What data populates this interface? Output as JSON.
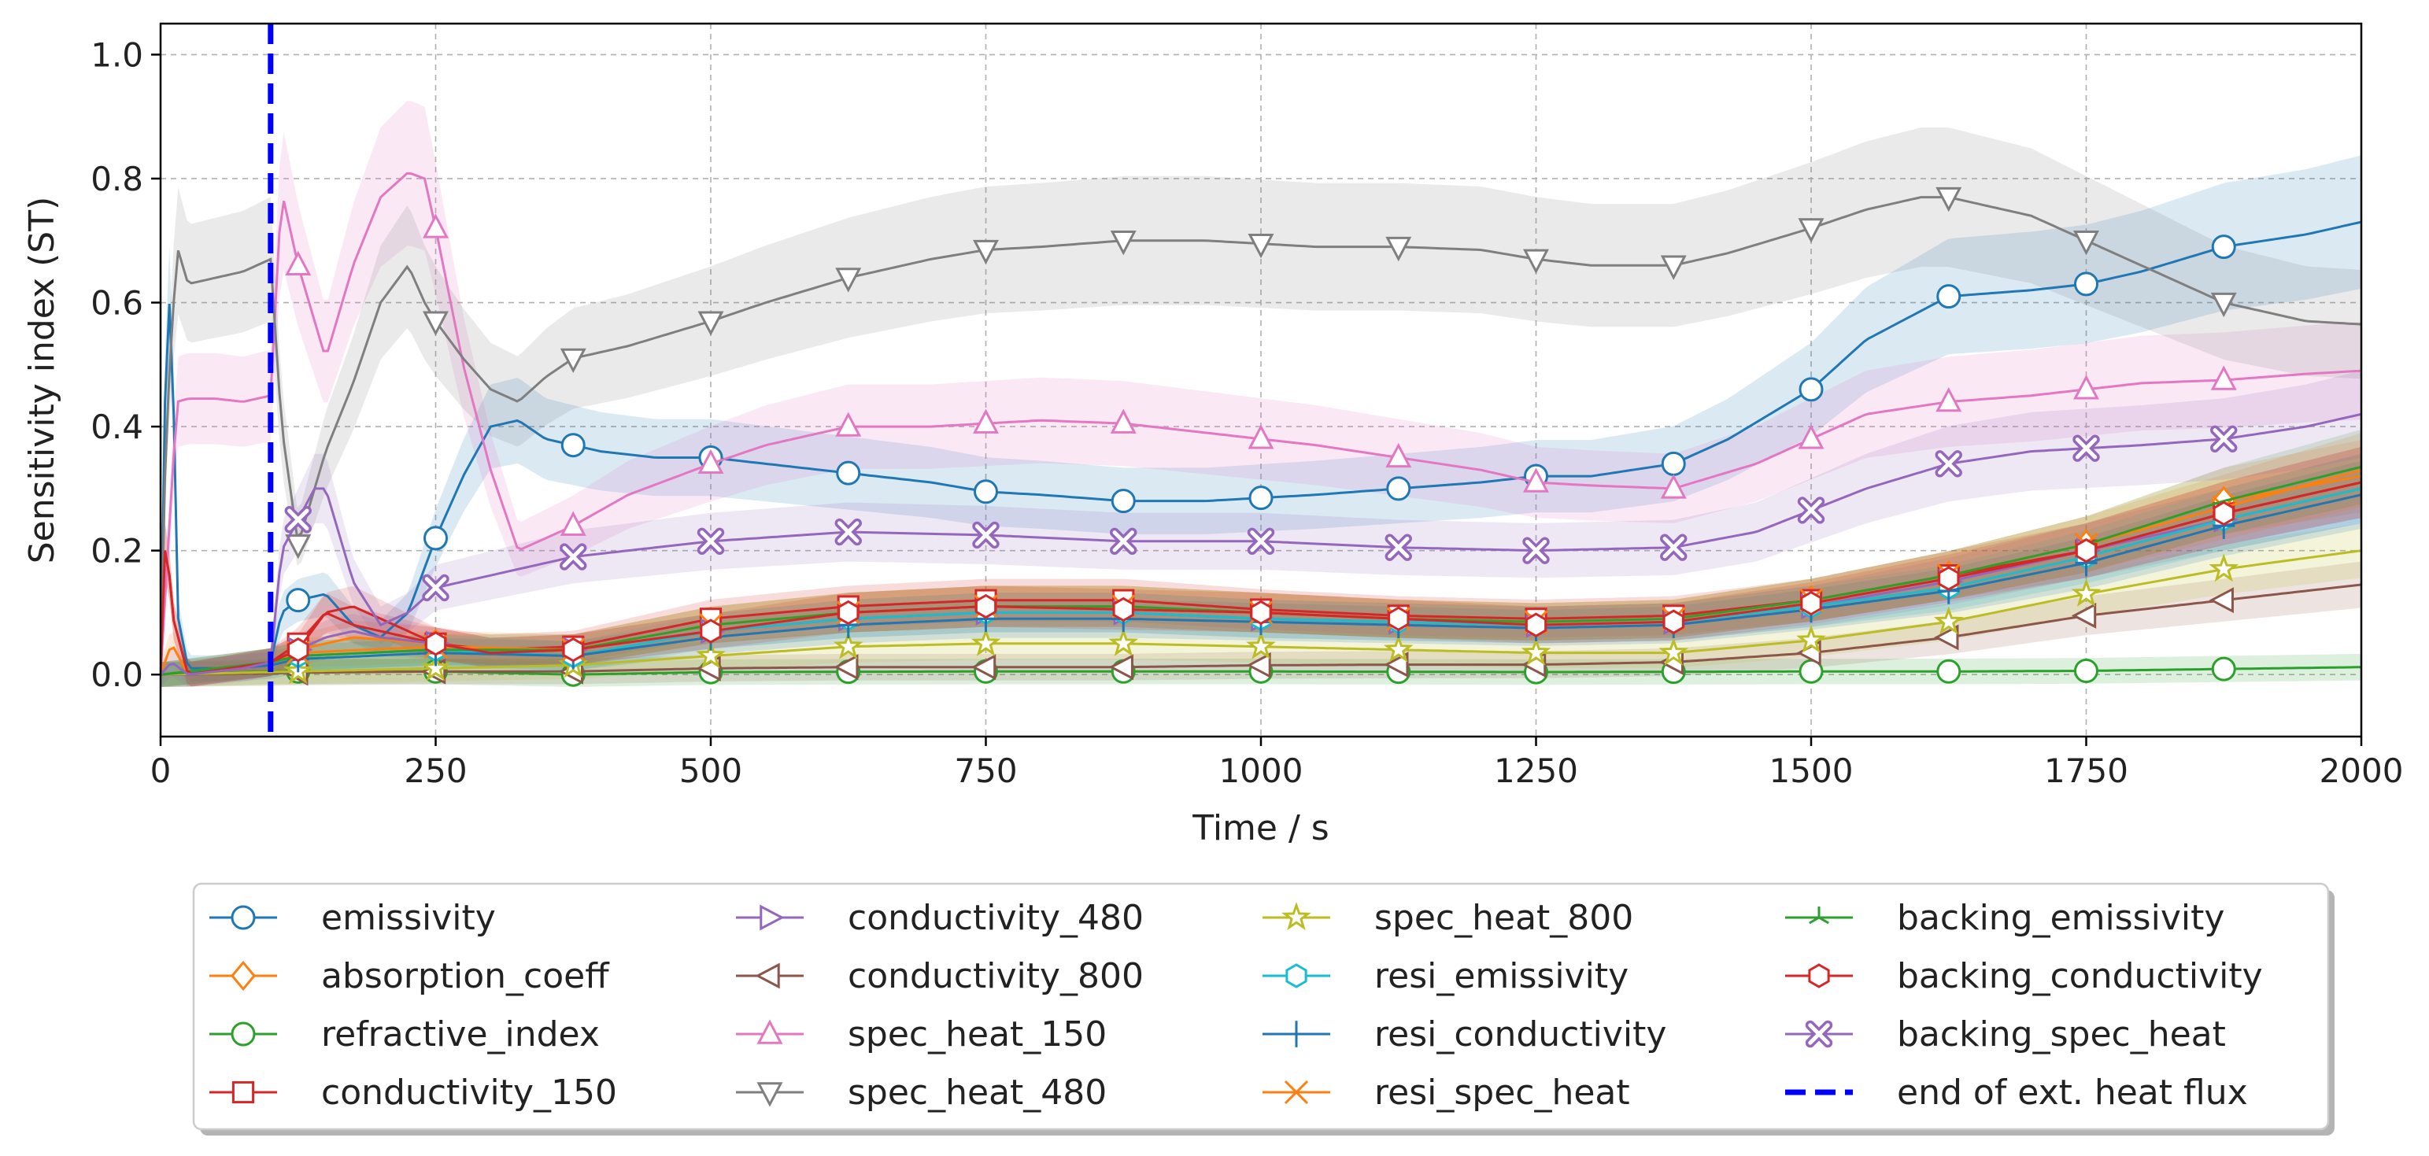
{
  "chart_data": {
    "type": "line",
    "title": "",
    "xlabel": "Time / s",
    "ylabel": "Sensitivity index (ST)",
    "xlim": [
      0,
      2000
    ],
    "ylim": [
      -0.1,
      1.05
    ],
    "xticks": [
      0,
      250,
      500,
      750,
      1000,
      1250,
      1500,
      1750,
      2000
    ],
    "yticks": [
      0.0,
      0.2,
      0.4,
      0.6,
      0.8,
      1.0
    ],
    "grid": true,
    "legend_position": "bottom, outside plot, 4 columns",
    "vline": {
      "x": 100,
      "label": "end of ext. heat flux",
      "color": "#0000ff"
    },
    "series": [
      {
        "name": "emissivity",
        "color": "#1f77b4",
        "marker": "circle",
        "x": [
          0,
          5,
          10,
          15,
          25,
          50,
          75,
          100,
          110,
          125,
          150,
          175,
          200,
          225,
          250,
          275,
          300,
          325,
          350,
          375,
          400,
          450,
          500,
          550,
          600,
          625,
          700,
          750,
          800,
          875,
          950,
          1000,
          1050,
          1125,
          1200,
          1250,
          1300,
          1375,
          1425,
          1500,
          1550,
          1625,
          1700,
          1750,
          1800,
          1875,
          1950,
          2000
        ],
        "y": [
          0.0,
          0.55,
          0.63,
          0.1,
          0.01,
          0.01,
          0.015,
          0.02,
          0.1,
          0.12,
          0.13,
          0.08,
          0.06,
          0.1,
          0.22,
          0.32,
          0.4,
          0.41,
          0.38,
          0.37,
          0.36,
          0.35,
          0.35,
          0.34,
          0.33,
          0.325,
          0.31,
          0.295,
          0.29,
          0.28,
          0.28,
          0.285,
          0.29,
          0.3,
          0.31,
          0.32,
          0.32,
          0.34,
          0.38,
          0.46,
          0.54,
          0.61,
          0.62,
          0.63,
          0.65,
          0.69,
          0.71,
          0.73
        ],
        "markers_at": [
          125,
          250,
          375,
          500,
          625,
          750,
          875,
          1000,
          1125,
          1250,
          1375,
          1500,
          1625,
          1750,
          1875
        ]
      },
      {
        "name": "absorption_coeff",
        "color": "#ff7f0e",
        "marker": "diamond",
        "x": [
          0,
          10,
          25,
          100,
          125,
          175,
          250,
          300,
          375,
          500,
          625,
          750,
          875,
          1000,
          1125,
          1250,
          1375,
          1500,
          1625,
          1750,
          1875,
          2000
        ],
        "y": [
          0.0,
          0.05,
          0.0,
          0.02,
          0.04,
          0.06,
          0.05,
          0.035,
          0.04,
          0.08,
          0.1,
          0.11,
          0.11,
          0.1,
          0.09,
          0.085,
          0.09,
          0.12,
          0.16,
          0.21,
          0.28,
          0.32
        ],
        "markers_at": [
          125,
          250,
          375,
          500,
          625,
          750,
          875,
          1000,
          1125,
          1250,
          1375,
          1500,
          1625,
          1750,
          1875
        ]
      },
      {
        "name": "refractive_index",
        "color": "#2ca02c",
        "marker": "circle",
        "x": [
          0,
          100,
          125,
          250,
          375,
          500,
          750,
          1000,
          1250,
          1500,
          1625,
          1750,
          1875,
          2000
        ],
        "y": [
          0.0,
          0.005,
          0.005,
          0.005,
          0.0,
          0.004,
          0.005,
          0.005,
          0.004,
          0.005,
          0.005,
          0.006,
          0.009,
          0.012
        ],
        "markers_at": [
          125,
          250,
          375,
          500,
          625,
          750,
          875,
          1000,
          1125,
          1250,
          1375,
          1500,
          1625,
          1750,
          1875
        ]
      },
      {
        "name": "conductivity_150",
        "color": "#d62728",
        "marker": "square",
        "x": [
          0,
          5,
          10,
          25,
          100,
          125,
          150,
          175,
          200,
          250,
          300,
          375,
          500,
          625,
          750,
          875,
          1000,
          1125,
          1250,
          1375,
          1500,
          1625,
          1750,
          1875,
          2000
        ],
        "y": [
          0.0,
          0.25,
          0.1,
          0.0,
          0.02,
          0.05,
          0.1,
          0.08,
          0.07,
          0.05,
          0.04,
          0.045,
          0.09,
          0.11,
          0.12,
          0.12,
          0.105,
          0.095,
          0.09,
          0.095,
          0.12,
          0.16,
          0.2,
          0.26,
          0.31
        ],
        "markers_at": [
          125,
          250,
          375,
          500,
          625,
          750,
          875,
          1000,
          1125,
          1250,
          1375,
          1500,
          1625,
          1750,
          1875
        ]
      },
      {
        "name": "conductivity_480",
        "color": "#9467bd",
        "marker": "triangle-right",
        "x": [
          0,
          25,
          100,
          125,
          150,
          175,
          200,
          250,
          300,
          375,
          500,
          625,
          750,
          875,
          1000,
          1125,
          1250,
          1375,
          1500,
          1625,
          1750,
          1875,
          2000
        ],
        "y": [
          0.0,
          0.0,
          0.02,
          0.04,
          0.06,
          0.07,
          0.06,
          0.05,
          0.035,
          0.04,
          0.07,
          0.09,
          0.1,
          0.1,
          0.09,
          0.085,
          0.08,
          0.085,
          0.11,
          0.15,
          0.2,
          0.25,
          0.3
        ],
        "markers_at": [
          125,
          250,
          375,
          500,
          625,
          750,
          875,
          1000,
          1125,
          1250,
          1375,
          1500,
          1625,
          1750,
          1875
        ]
      },
      {
        "name": "conductivity_800",
        "color": "#8c564b",
        "marker": "triangle-left",
        "x": [
          0,
          100,
          125,
          250,
          375,
          500,
          625,
          750,
          875,
          1000,
          1125,
          1250,
          1375,
          1500,
          1625,
          1750,
          1875,
          2000
        ],
        "y": [
          0.0,
          0.002,
          0.003,
          0.005,
          0.005,
          0.01,
          0.012,
          0.012,
          0.012,
          0.015,
          0.016,
          0.016,
          0.02,
          0.035,
          0.06,
          0.095,
          0.12,
          0.145
        ],
        "markers_at": [
          125,
          250,
          375,
          500,
          625,
          750,
          875,
          1000,
          1125,
          1250,
          1375,
          1500,
          1625,
          1750,
          1875
        ]
      },
      {
        "name": "spec_heat_150",
        "color": "#e377c2",
        "marker": "triangle-up",
        "x": [
          0,
          10,
          15,
          25,
          50,
          75,
          100,
          110,
          125,
          150,
          175,
          200,
          225,
          240,
          250,
          275,
          300,
          325,
          350,
          375,
          425,
          500,
          550,
          625,
          700,
          750,
          800,
          875,
          950,
          1000,
          1050,
          1125,
          1200,
          1250,
          1300,
          1375,
          1450,
          1500,
          1550,
          1625,
          1700,
          1750,
          1800,
          1875,
          1950,
          2000
        ],
        "y": [
          0.0,
          0.3,
          0.44,
          0.445,
          0.445,
          0.44,
          0.45,
          0.78,
          0.66,
          0.51,
          0.66,
          0.77,
          0.81,
          0.8,
          0.72,
          0.5,
          0.33,
          0.2,
          0.22,
          0.24,
          0.29,
          0.34,
          0.37,
          0.4,
          0.4,
          0.405,
          0.41,
          0.405,
          0.39,
          0.38,
          0.37,
          0.35,
          0.33,
          0.31,
          0.305,
          0.3,
          0.34,
          0.38,
          0.42,
          0.44,
          0.45,
          0.46,
          0.47,
          0.475,
          0.485,
          0.49
        ],
        "markers_at": [
          125,
          250,
          375,
          500,
          625,
          750,
          875,
          1000,
          1125,
          1250,
          1375,
          1500,
          1625,
          1750,
          1875
        ]
      },
      {
        "name": "spec_heat_480",
        "color": "#7f7f7f",
        "marker": "triangle-down",
        "x": [
          0,
          5,
          15,
          25,
          50,
          75,
          100,
          110,
          125,
          150,
          175,
          200,
          225,
          240,
          250,
          275,
          300,
          325,
          350,
          375,
          425,
          500,
          550,
          625,
          700,
          750,
          800,
          875,
          950,
          1000,
          1050,
          1125,
          1200,
          1250,
          1300,
          1375,
          1425,
          1500,
          1550,
          1600,
          1625,
          1700,
          1750,
          1800,
          1875,
          1950,
          2000
        ],
        "y": [
          0.0,
          0.4,
          0.69,
          0.63,
          0.64,
          0.65,
          0.67,
          0.4,
          0.21,
          0.36,
          0.47,
          0.6,
          0.66,
          0.6,
          0.57,
          0.51,
          0.46,
          0.44,
          0.48,
          0.51,
          0.53,
          0.57,
          0.6,
          0.64,
          0.67,
          0.685,
          0.69,
          0.7,
          0.7,
          0.695,
          0.69,
          0.69,
          0.685,
          0.67,
          0.66,
          0.66,
          0.68,
          0.72,
          0.75,
          0.77,
          0.77,
          0.74,
          0.7,
          0.66,
          0.6,
          0.57,
          0.565
        ],
        "markers_at": [
          125,
          250,
          375,
          500,
          625,
          750,
          875,
          1000,
          1125,
          1250,
          1375,
          1500,
          1625,
          1750,
          1875
        ]
      },
      {
        "name": "spec_heat_800",
        "color": "#bcbd22",
        "marker": "star",
        "x": [
          0,
          100,
          125,
          250,
          375,
          500,
          625,
          750,
          875,
          1000,
          1125,
          1250,
          1375,
          1500,
          1625,
          1750,
          1875,
          2000
        ],
        "y": [
          0.0,
          0.004,
          0.005,
          0.01,
          0.015,
          0.03,
          0.045,
          0.05,
          0.05,
          0.045,
          0.04,
          0.035,
          0.035,
          0.055,
          0.085,
          0.13,
          0.17,
          0.2
        ],
        "markers_at": [
          125,
          250,
          375,
          500,
          625,
          750,
          875,
          1000,
          1125,
          1250,
          1375,
          1500,
          1625,
          1750,
          1875
        ]
      },
      {
        "name": "resi_emissivity",
        "color": "#17becf",
        "marker": "hexagon",
        "x": [
          0,
          100,
          125,
          250,
          375,
          500,
          625,
          750,
          875,
          1000,
          1125,
          1250,
          1375,
          1500,
          1625,
          1750,
          1875,
          2000
        ],
        "y": [
          0.0,
          0.02,
          0.03,
          0.04,
          0.03,
          0.07,
          0.09,
          0.1,
          0.1,
          0.09,
          0.085,
          0.08,
          0.085,
          0.11,
          0.14,
          0.19,
          0.25,
          0.3
        ],
        "markers_at": [
          125,
          250,
          375,
          500,
          625,
          750,
          875,
          1000,
          1125,
          1250,
          1375,
          1500,
          1625,
          1750,
          1875
        ]
      },
      {
        "name": "resi_conductivity",
        "color": "#1f77b4",
        "marker": "plus",
        "x": [
          0,
          100,
          125,
          250,
          375,
          500,
          625,
          750,
          875,
          1000,
          1125,
          1250,
          1375,
          1500,
          1625,
          1750,
          1875,
          2000
        ],
        "y": [
          0.0,
          0.015,
          0.025,
          0.035,
          0.03,
          0.06,
          0.08,
          0.09,
          0.09,
          0.085,
          0.08,
          0.075,
          0.08,
          0.105,
          0.135,
          0.18,
          0.24,
          0.29
        ],
        "markers_at": [
          125,
          250,
          375,
          500,
          625,
          750,
          875,
          1000,
          1125,
          1250,
          1375,
          1500,
          1625,
          1750,
          1875
        ]
      },
      {
        "name": "resi_spec_heat",
        "color": "#ff7f0e",
        "marker": "x",
        "x": [
          0,
          100,
          125,
          250,
          375,
          500,
          625,
          750,
          875,
          1000,
          1125,
          1250,
          1375,
          1500,
          1625,
          1750,
          1875,
          2000
        ],
        "y": [
          0.0,
          0.02,
          0.035,
          0.045,
          0.04,
          0.08,
          0.1,
          0.11,
          0.11,
          0.1,
          0.09,
          0.085,
          0.09,
          0.12,
          0.16,
          0.21,
          0.27,
          0.33
        ],
        "markers_at": [
          125,
          250,
          375,
          500,
          625,
          750,
          875,
          1000,
          1125,
          1250,
          1375,
          1500,
          1625,
          1750,
          1875
        ]
      },
      {
        "name": "backing_emissivity",
        "color": "#2ca02c",
        "marker": "tri",
        "x": [
          0,
          100,
          125,
          250,
          375,
          500,
          625,
          750,
          875,
          1000,
          1125,
          1250,
          1375,
          1500,
          1625,
          1750,
          1875,
          2000
        ],
        "y": [
          0.0,
          0.02,
          0.03,
          0.04,
          0.04,
          0.08,
          0.1,
          0.11,
          0.11,
          0.1,
          0.09,
          0.085,
          0.09,
          0.12,
          0.16,
          0.21,
          0.28,
          0.335
        ],
        "markers_at": []
      },
      {
        "name": "backing_conductivity",
        "color": "#d62728",
        "marker": "hexagon",
        "x": [
          0,
          5,
          10,
          25,
          100,
          125,
          150,
          175,
          200,
          250,
          300,
          375,
          500,
          625,
          750,
          875,
          1000,
          1125,
          1250,
          1375,
          1500,
          1625,
          1750,
          1875,
          2000
        ],
        "y": [
          0.0,
          0.25,
          0.1,
          0.0,
          0.02,
          0.04,
          0.1,
          0.11,
          0.09,
          0.05,
          0.035,
          0.04,
          0.07,
          0.1,
          0.11,
          0.105,
          0.1,
          0.09,
          0.08,
          0.085,
          0.115,
          0.155,
          0.2,
          0.26,
          0.31
        ],
        "markers_at": [
          125,
          250,
          375,
          500,
          625,
          750,
          875,
          1000,
          1125,
          1250,
          1375,
          1500,
          1625,
          1750,
          1875
        ]
      },
      {
        "name": "backing_spec_heat",
        "color": "#9467bd",
        "marker": "x-thick",
        "x": [
          0,
          10,
          25,
          75,
          100,
          110,
          125,
          140,
          150,
          175,
          200,
          225,
          250,
          300,
          375,
          500,
          625,
          750,
          875,
          1000,
          1125,
          1250,
          1375,
          1450,
          1500,
          1550,
          1625,
          1700,
          1750,
          1800,
          1875,
          1950,
          2000
        ],
        "y": [
          0.0,
          0.02,
          0.0,
          0.01,
          0.02,
          0.2,
          0.25,
          0.3,
          0.3,
          0.15,
          0.08,
          0.1,
          0.14,
          0.16,
          0.19,
          0.215,
          0.23,
          0.225,
          0.215,
          0.215,
          0.205,
          0.2,
          0.205,
          0.23,
          0.265,
          0.3,
          0.34,
          0.36,
          0.365,
          0.37,
          0.38,
          0.4,
          0.42
        ],
        "markers_at": [
          125,
          250,
          375,
          500,
          625,
          750,
          875,
          1000,
          1125,
          1250,
          1375,
          1500,
          1625,
          1750,
          1875
        ]
      }
    ]
  }
}
